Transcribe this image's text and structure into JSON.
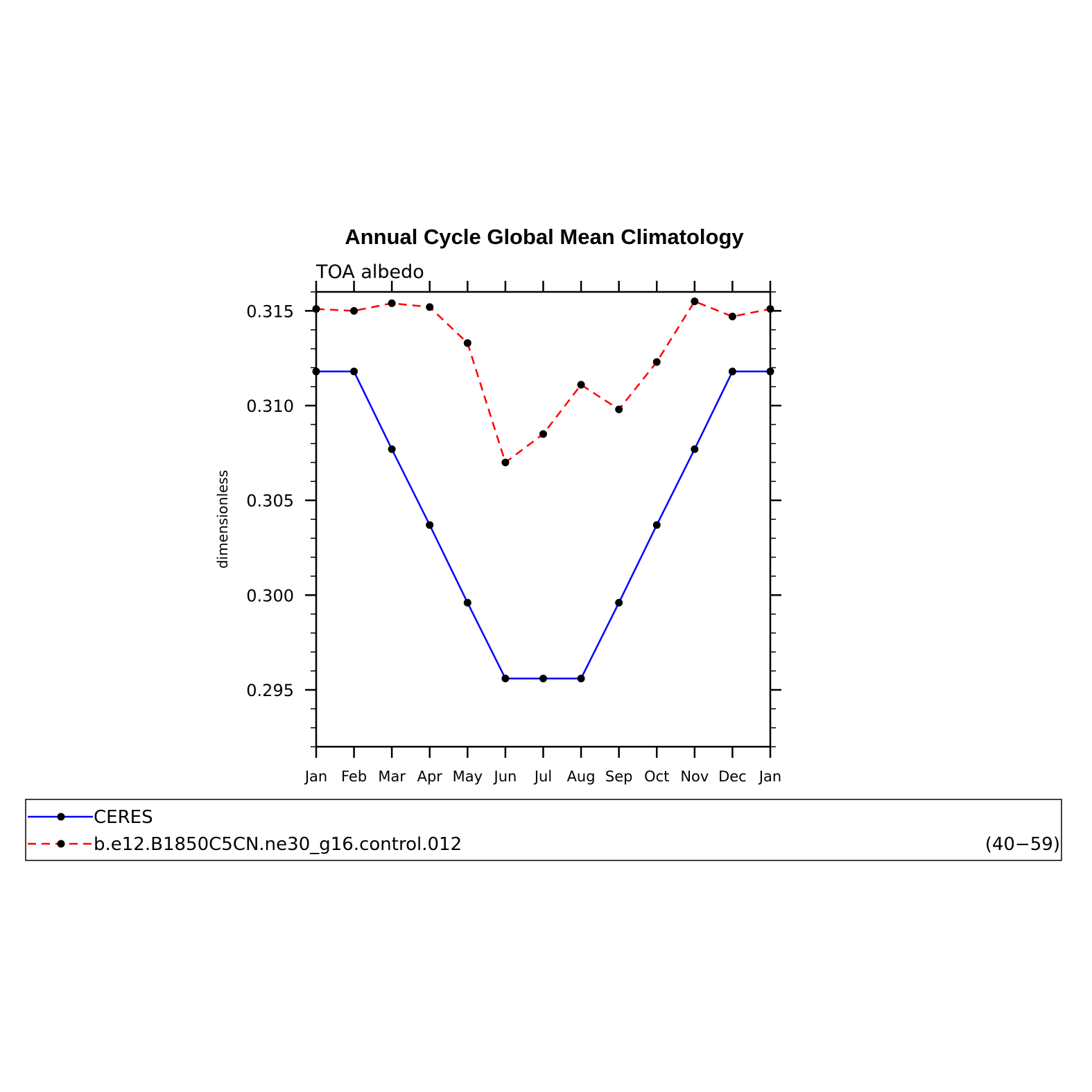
{
  "chart_data": {
    "type": "line",
    "title": "Annual Cycle Global Mean Climatology",
    "subtitle": "TOA albedo",
    "ylabel": "dimensionless",
    "xlabel": "",
    "categories": [
      "Jan",
      "Feb",
      "Mar",
      "Apr",
      "May",
      "Jun",
      "Jul",
      "Aug",
      "Sep",
      "Oct",
      "Nov",
      "Dec",
      "Jan"
    ],
    "ylim": [
      0.292,
      0.316
    ],
    "yticks": [
      0.295,
      0.3,
      0.305,
      0.31,
      0.315
    ],
    "ytick_labels": [
      "0.295",
      "0.300",
      "0.305",
      "0.310",
      "0.315"
    ],
    "grid": false,
    "legend_position": "bottom",
    "series": [
      {
        "name": "CERES",
        "color": "#0000ff",
        "style": "solid",
        "values": [
          0.3118,
          0.3118,
          0.3077,
          0.3037,
          0.2996,
          0.2956,
          0.2956,
          0.2956,
          0.2996,
          0.3037,
          0.3077,
          0.3118,
          0.3118
        ]
      },
      {
        "name": "b.e12.B1850C5CN.ne30_g16.control.012",
        "color": "#ff0000",
        "style": "dashed",
        "values": [
          0.3151,
          0.315,
          0.3154,
          0.3152,
          0.3133,
          0.307,
          0.3085,
          0.3111,
          0.3098,
          0.3123,
          0.3155,
          0.3147,
          0.3151
        ]
      }
    ],
    "legend_note": "(40−59)"
  }
}
